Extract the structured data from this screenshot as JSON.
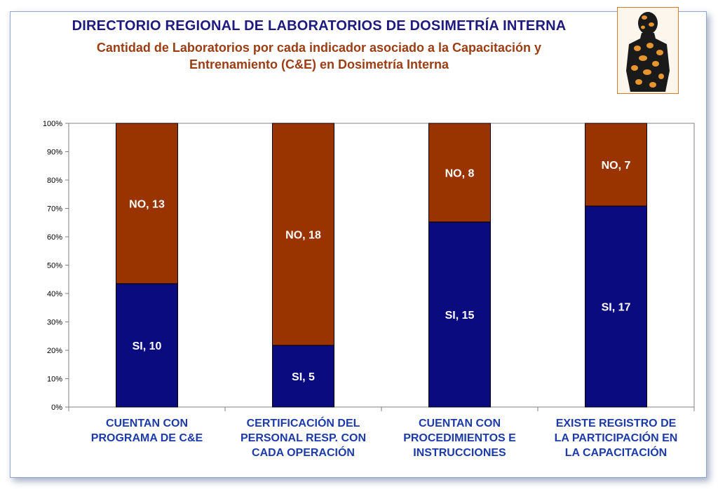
{
  "header": {
    "title": "DIRECTORIO REGIONAL DE LABORATORIOS  DE DOSIMETRÍA INTERNA",
    "subtitle_line1": "Cantidad de Laboratorios por cada indicador asociado a  la Capacitación y",
    "subtitle_line2": "Entrenamiento (C&E) en Dosimetría Interna"
  },
  "logo": {
    "icon": "human-figure-icon",
    "colors": [
      "#1a1a1a",
      "#e8952e"
    ]
  },
  "chart_data": {
    "type": "bar",
    "stacked": true,
    "percent_stacked": true,
    "categories": [
      [
        "CUENTAN CON",
        "PROGRAMA DE  C&E"
      ],
      [
        "CERTIFICACIÓN DEL",
        "PERSONAL RESP. CON",
        "CADA OPERACIÓN"
      ],
      [
        "CUENTAN CON",
        "PROCEDIMIENTOS E",
        "INSTRUCCIONES"
      ],
      [
        "EXISTE REGISTRO DE",
        "LA PARTICIPACIÓN EN",
        "LA CAPACITACIÓN"
      ]
    ],
    "series": [
      {
        "name": "SI",
        "values": [
          10,
          5,
          15,
          17
        ],
        "color": "#0b0b80",
        "labels": [
          "SI, 10",
          "SI, 5",
          "SI, 15",
          "SI, 17"
        ]
      },
      {
        "name": "NO",
        "values": [
          13,
          18,
          8,
          7
        ],
        "color": "#993300",
        "labels": [
          "NO, 13",
          "NO, 18",
          "NO, 8",
          "NO, 7"
        ]
      }
    ],
    "yticks": [
      "0%",
      "10%",
      "20%",
      "30%",
      "40%",
      "50%",
      "60%",
      "70%",
      "80%",
      "90%",
      "100%"
    ],
    "ylim": [
      0,
      100
    ],
    "grid": false,
    "legend": "none"
  }
}
